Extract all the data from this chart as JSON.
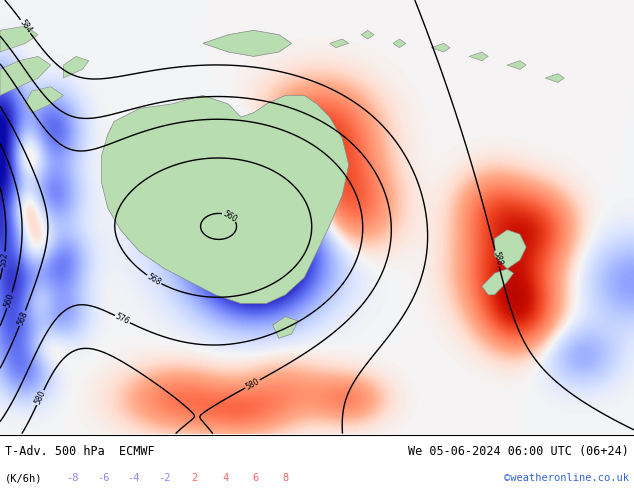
{
  "title_left": "T-Adv. 500 hPa  ECMWF",
  "title_right": "We 05-06-2024 06:00 UTC (06+24)",
  "unit_label": "(K/6h)",
  "colorbar_values": [
    -8,
    -6,
    -4,
    -2,
    2,
    4,
    6,
    8
  ],
  "neg_color": "#8888ff",
  "pos_color": "#ff6666",
  "credit": "©weatheronline.co.uk",
  "credit_color": "#3366cc",
  "sea_color": "#c8d4e0",
  "land_color": "#b8ddb0",
  "bottom_bg": "#ffffff",
  "fig_width": 6.34,
  "fig_height": 4.9,
  "dpi": 100
}
